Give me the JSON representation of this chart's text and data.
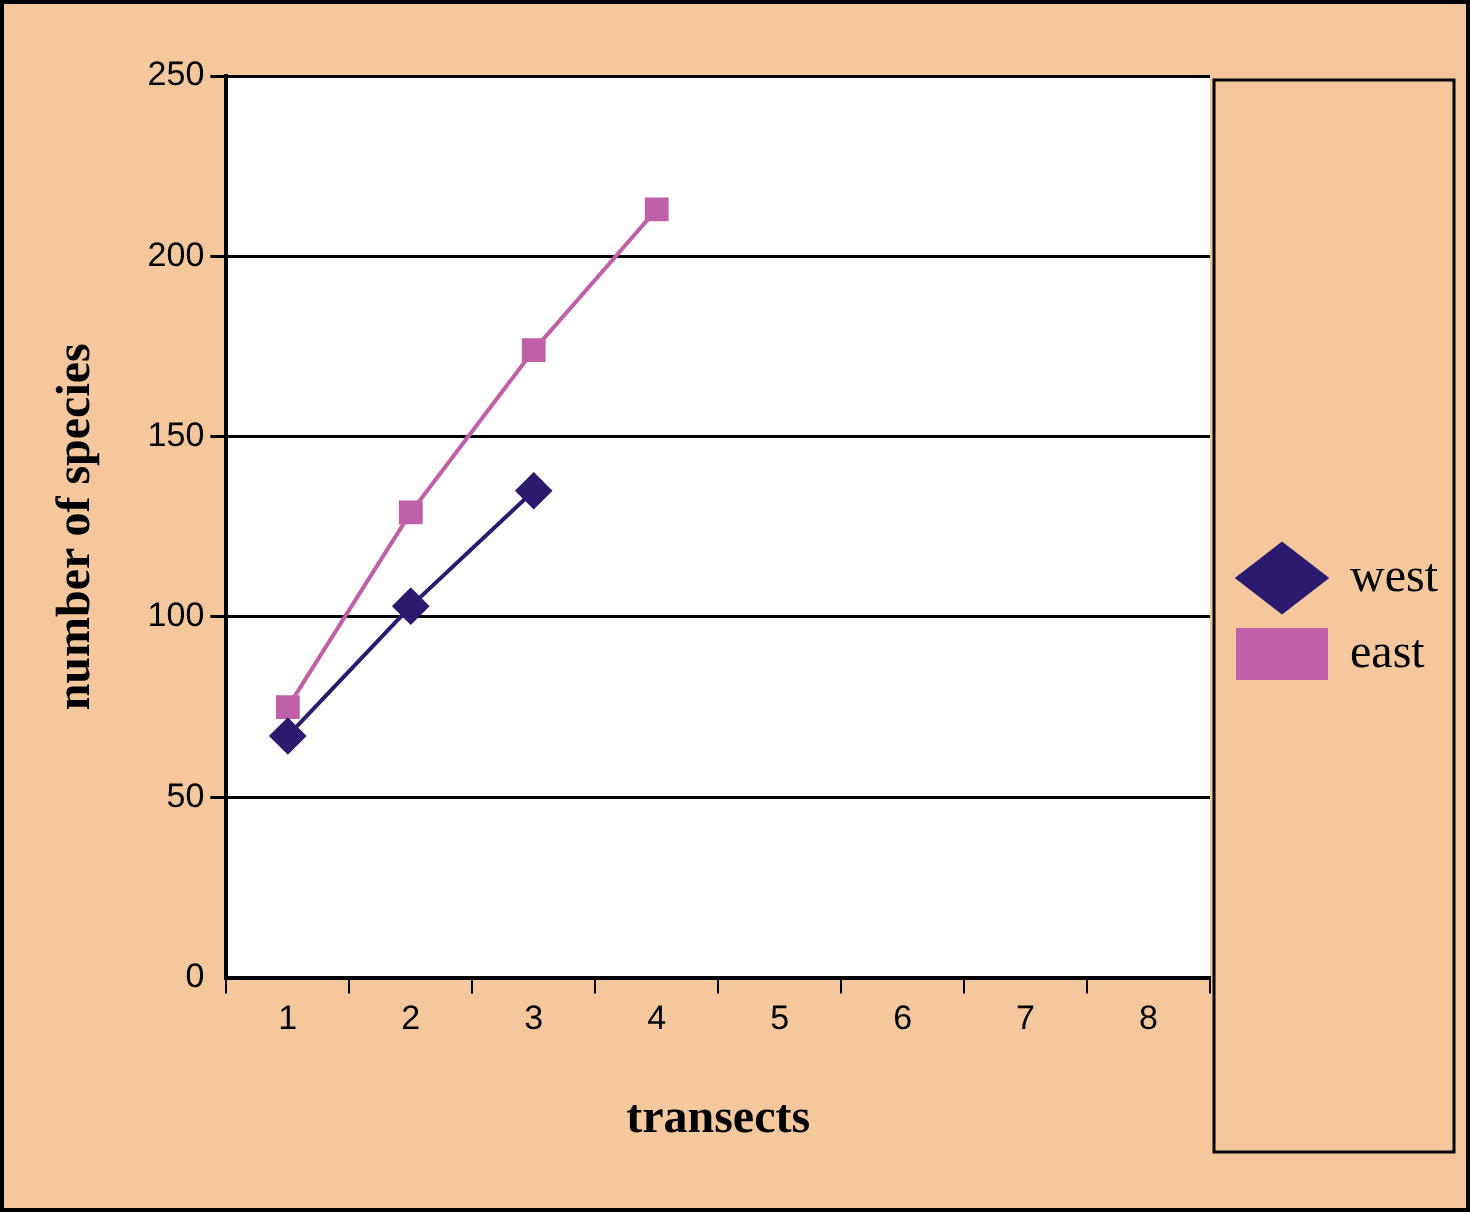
{
  "chart_data": {
    "type": "line",
    "xlabel": "transects",
    "ylabel": "number of species",
    "categories": [
      "1",
      "2",
      "3",
      "4",
      "5",
      "6",
      "7",
      "8"
    ],
    "series": [
      {
        "name": "west",
        "color": "#2b1a6e",
        "marker": "diamond",
        "values": [
          67,
          103,
          135,
          null,
          null,
          null,
          null,
          null
        ]
      },
      {
        "name": "east",
        "color": "#c060a8",
        "marker": "square",
        "values": [
          75,
          129,
          174,
          213,
          null,
          null,
          null,
          null
        ]
      }
    ],
    "ylim": [
      0,
      250
    ],
    "yticks": [
      0,
      50,
      100,
      150,
      200,
      250
    ],
    "grid": "y",
    "legend": "right",
    "line_style": "solid"
  }
}
